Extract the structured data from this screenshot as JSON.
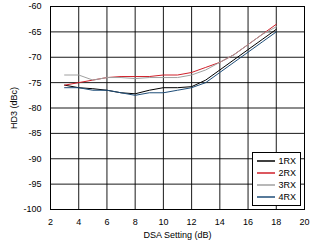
{
  "chart_data": {
    "type": "line",
    "x_label": "DSA Setting (dB)",
    "y_label": "HD3 (dBc)",
    "x": [
      3,
      4,
      5,
      6,
      7,
      8,
      9,
      10,
      11,
      12,
      13,
      14,
      15,
      16,
      17,
      18
    ],
    "series": [
      {
        "name": "1RX",
        "color": "#000000",
        "values": [
          -75.5,
          -76,
          -76.2,
          -76.5,
          -77,
          -77.2,
          -76.5,
          -76,
          -76,
          -75.8,
          -74.5,
          -72.5,
          -70.5,
          -68.5,
          -66.5,
          -64.5
        ]
      },
      {
        "name": "2RX",
        "color": "#d0202a",
        "values": [
          -75.5,
          -75,
          -74.5,
          -74,
          -73.8,
          -73.8,
          -73.8,
          -73.5,
          -73.5,
          -73,
          -72,
          -71,
          -69.5,
          -67.5,
          -65.5,
          -63.5
        ]
      },
      {
        "name": "3RX",
        "color": "#a0a0a0",
        "values": [
          -73.5,
          -73.5,
          -74.5,
          -74,
          -74,
          -74.2,
          -74,
          -74,
          -74,
          -73.5,
          -72.5,
          -71,
          -69.5,
          -67.5,
          -65.5,
          -64
        ]
      },
      {
        "name": "4RX",
        "color": "#1f4e79",
        "values": [
          -76,
          -76,
          -76.5,
          -76.5,
          -77,
          -77.5,
          -77,
          -77,
          -76.5,
          -76,
          -75,
          -73,
          -71,
          -69,
          -67,
          -65
        ]
      }
    ],
    "xlim": [
      2,
      20
    ],
    "xticks": [
      2,
      4,
      6,
      8,
      10,
      12,
      14,
      16,
      18,
      20
    ],
    "ylim": [
      -100,
      -60
    ],
    "yticks": [
      -100,
      -95,
      -90,
      -85,
      -80,
      -75,
      -70,
      -65,
      -60
    ],
    "grid": true,
    "legend": "bottom-right"
  }
}
